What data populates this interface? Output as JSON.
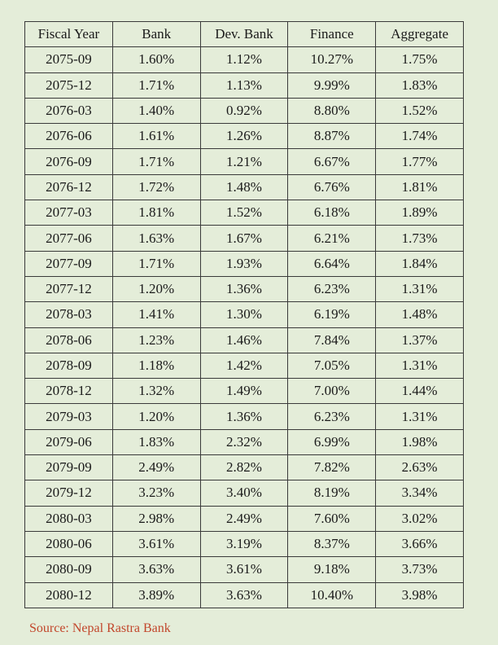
{
  "table": {
    "header": [
      "Fiscal Year",
      "Bank",
      "Dev. Bank",
      "Finance",
      "Aggregate"
    ],
    "rows": [
      [
        "2075-09",
        "1.60%",
        "1.12%",
        "10.27%",
        "1.75%"
      ],
      [
        "2075-12",
        "1.71%",
        "1.13%",
        "9.99%",
        "1.83%"
      ],
      [
        "2076-03",
        "1.40%",
        "0.92%",
        "8.80%",
        "1.52%"
      ],
      [
        "2076-06",
        "1.61%",
        "1.26%",
        "8.87%",
        "1.74%"
      ],
      [
        "2076-09",
        "1.71%",
        "1.21%",
        "6.67%",
        "1.77%"
      ],
      [
        "2076-12",
        "1.72%",
        "1.48%",
        "6.76%",
        "1.81%"
      ],
      [
        "2077-03",
        "1.81%",
        "1.52%",
        "6.18%",
        "1.89%"
      ],
      [
        "2077-06",
        "1.63%",
        "1.67%",
        "6.21%",
        "1.73%"
      ],
      [
        "2077-09",
        "1.71%",
        "1.93%",
        "6.64%",
        "1.84%"
      ],
      [
        "2077-12",
        "1.20%",
        "1.36%",
        "6.23%",
        "1.31%"
      ],
      [
        "2078-03",
        "1.41%",
        "1.30%",
        "6.19%",
        "1.48%"
      ],
      [
        "2078-06",
        "1.23%",
        "1.46%",
        "7.84%",
        "1.37%"
      ],
      [
        "2078-09",
        "1.18%",
        "1.42%",
        "7.05%",
        "1.31%"
      ],
      [
        "2078-12",
        "1.32%",
        "1.49%",
        "7.00%",
        "1.44%"
      ],
      [
        "2079-03",
        "1.20%",
        "1.36%",
        "6.23%",
        "1.31%"
      ],
      [
        "2079-06",
        "1.83%",
        "2.32%",
        "6.99%",
        "1.98%"
      ],
      [
        "2079-09",
        "2.49%",
        "2.82%",
        "7.82%",
        "2.63%"
      ],
      [
        "2079-12",
        "3.23%",
        "3.40%",
        "8.19%",
        "3.34%"
      ],
      [
        "2080-03",
        "2.98%",
        "2.49%",
        "7.60%",
        "3.02%"
      ],
      [
        "2080-06",
        "3.61%",
        "3.19%",
        "8.37%",
        "3.66%"
      ],
      [
        "2080-09",
        "3.63%",
        "3.61%",
        "9.18%",
        "3.73%"
      ],
      [
        "2080-12",
        "3.89%",
        "3.63%",
        "10.40%",
        "3.98%"
      ]
    ]
  },
  "source": "Source: Nepal Rastra Bank"
}
